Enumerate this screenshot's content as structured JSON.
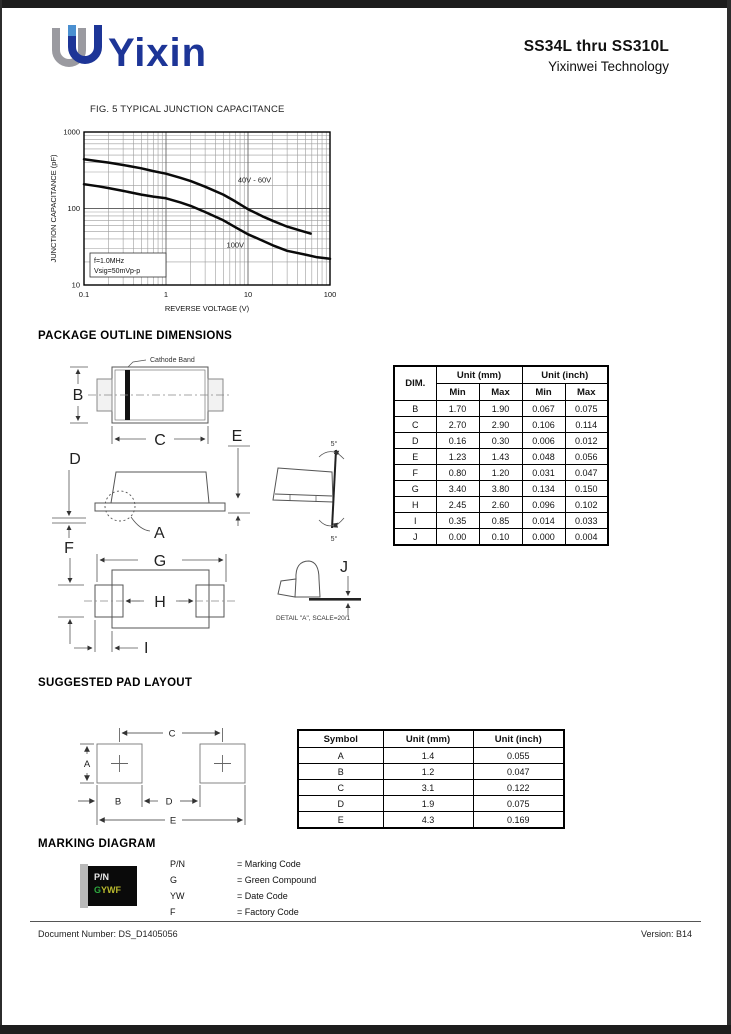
{
  "header": {
    "logo_text": "Yixin",
    "product_title": "SS34L thru SS310L",
    "company": "Yixinwei Technology"
  },
  "chart_data": {
    "type": "line",
    "title": "FIG. 5 TYPICAL JUNCTION CAPACITANCE",
    "xlabel": "REVERSE VOLTAGE (V)",
    "ylabel": "JUNCTION CAPACITANCE (pF)",
    "x_scale": "log",
    "y_scale": "log",
    "xlim": [
      0.1,
      100
    ],
    "ylim": [
      10,
      1000
    ],
    "x_ticks": [
      "0.1",
      "1",
      "10",
      "100"
    ],
    "y_ticks": [
      "1000",
      "100",
      "10"
    ],
    "grid": true,
    "annotation_lines": [
      "f=1.0MHz",
      "Vsig=50mVp-p"
    ],
    "series": [
      {
        "name": "40V - 60V",
        "label_x": 12,
        "label_y": 220,
        "x": [
          0.1,
          0.15,
          0.2,
          0.3,
          0.5,
          0.7,
          1,
          1.5,
          2,
          3,
          5,
          7,
          10,
          15,
          20,
          30,
          45,
          58
        ],
        "y": [
          440,
          415,
          398,
          370,
          335,
          308,
          285,
          252,
          228,
          193,
          152,
          124,
          98,
          79,
          69,
          58,
          51,
          47
        ]
      },
      {
        "name": "100V",
        "label_x": 7,
        "label_y": 31,
        "x": [
          0.1,
          0.15,
          0.2,
          0.3,
          0.5,
          0.7,
          1,
          1.5,
          2,
          3,
          5,
          7,
          10,
          15,
          20,
          30,
          50,
          70,
          100
        ],
        "y": [
          208,
          195,
          185,
          170,
          152,
          143,
          136,
          120,
          108,
          90,
          70,
          57,
          46,
          38,
          33,
          28,
          25,
          23,
          22
        ]
      }
    ]
  },
  "sections": {
    "outline_heading": "PACKAGE OUTLINE DIMENSIONS",
    "pad_heading": "SUGGESTED PAD LAYOUT",
    "marking_heading": "MARKING DIAGRAM"
  },
  "outline_drawing": {
    "cathode_band": "Cathode Band",
    "a": "A",
    "b": "B",
    "c": "C",
    "d": "D",
    "e": "E",
    "f": "F",
    "g": "G",
    "h": "H",
    "i": "I",
    "j": "J",
    "angle_top": "5°",
    "angle_bottom": "5°",
    "detail_note": "DETAIL \"A\", SCALE=20/1"
  },
  "outline_table": {
    "col_dim": "DIM.",
    "col_mm": "Unit (mm)",
    "col_inch": "Unit (inch)",
    "col_min": "Min",
    "col_max": "Max",
    "rows": [
      [
        "B",
        "1.70",
        "1.90",
        "0.067",
        "0.075"
      ],
      [
        "C",
        "2.70",
        "2.90",
        "0.106",
        "0.114"
      ],
      [
        "D",
        "0.16",
        "0.30",
        "0.006",
        "0.012"
      ],
      [
        "E",
        "1.23",
        "1.43",
        "0.048",
        "0.056"
      ],
      [
        "F",
        "0.80",
        "1.20",
        "0.031",
        "0.047"
      ],
      [
        "G",
        "3.40",
        "3.80",
        "0.134",
        "0.150"
      ],
      [
        "H",
        "2.45",
        "2.60",
        "0.096",
        "0.102"
      ],
      [
        "I",
        "0.35",
        "0.85",
        "0.014",
        "0.033"
      ],
      [
        "J",
        "0.00",
        "0.10",
        "0.000",
        "0.004"
      ]
    ]
  },
  "pad_drawing": {
    "a": "A",
    "b": "B",
    "c": "C",
    "d": "D",
    "e": "E"
  },
  "pad_table": {
    "headers": [
      "Symbol",
      "Unit (mm)",
      "Unit (inch)"
    ],
    "rows": [
      [
        "A",
        "1.4",
        "0.055"
      ],
      [
        "B",
        "1.2",
        "0.047"
      ],
      [
        "C",
        "3.1",
        "0.122"
      ],
      [
        "D",
        "1.9",
        "0.075"
      ],
      [
        "E",
        "4.3",
        "0.169"
      ]
    ]
  },
  "marking": {
    "chip": {
      "line1": "P/N",
      "g": "G",
      "ywf": "YWF"
    },
    "legend": [
      {
        "symbol": "P/N",
        "meaning": "= Marking Code"
      },
      {
        "symbol": "G",
        "meaning": "= Green Compound"
      },
      {
        "symbol": "YW",
        "meaning": "= Date Code"
      },
      {
        "symbol": "F",
        "meaning": "= Factory Code"
      }
    ]
  },
  "footer": {
    "document_number": "Document Number: DS_D1405056",
    "version": "Version: B14"
  },
  "colors": {
    "logo_blue": "#1d3597",
    "logo_grey": "#9a9aa0",
    "logo_lightblue": "#4a8fd0",
    "marking_green": "#2fa93f",
    "marking_yellow": "#b9b92e",
    "chart_curve": "#0a0a0a"
  }
}
